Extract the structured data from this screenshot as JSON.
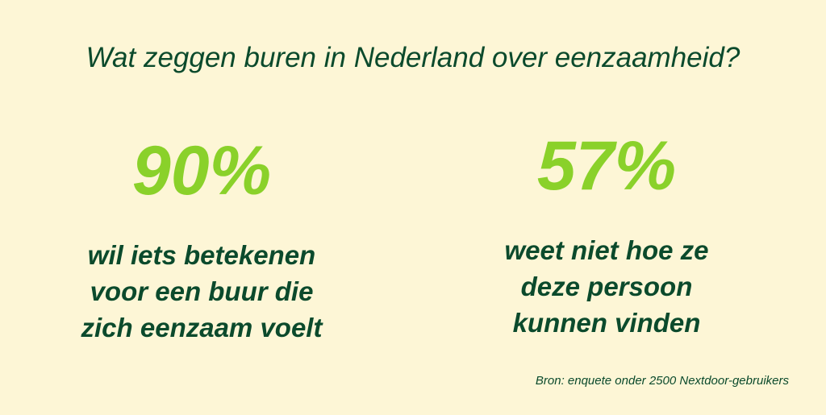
{
  "title": "Wat zeggen buren in Nederland over eenzaamheid?",
  "stats": [
    {
      "value": "90%",
      "lines": [
        "wil iets betekenen",
        "voor een buur die",
        "zich eenzaam voelt"
      ]
    },
    {
      "value": "57%",
      "lines": [
        "weet niet hoe ze",
        "deze persoon",
        "kunnen vinden"
      ]
    }
  ],
  "source": "Bron: enquete onder 2500 Nextdoor-gebruikers"
}
